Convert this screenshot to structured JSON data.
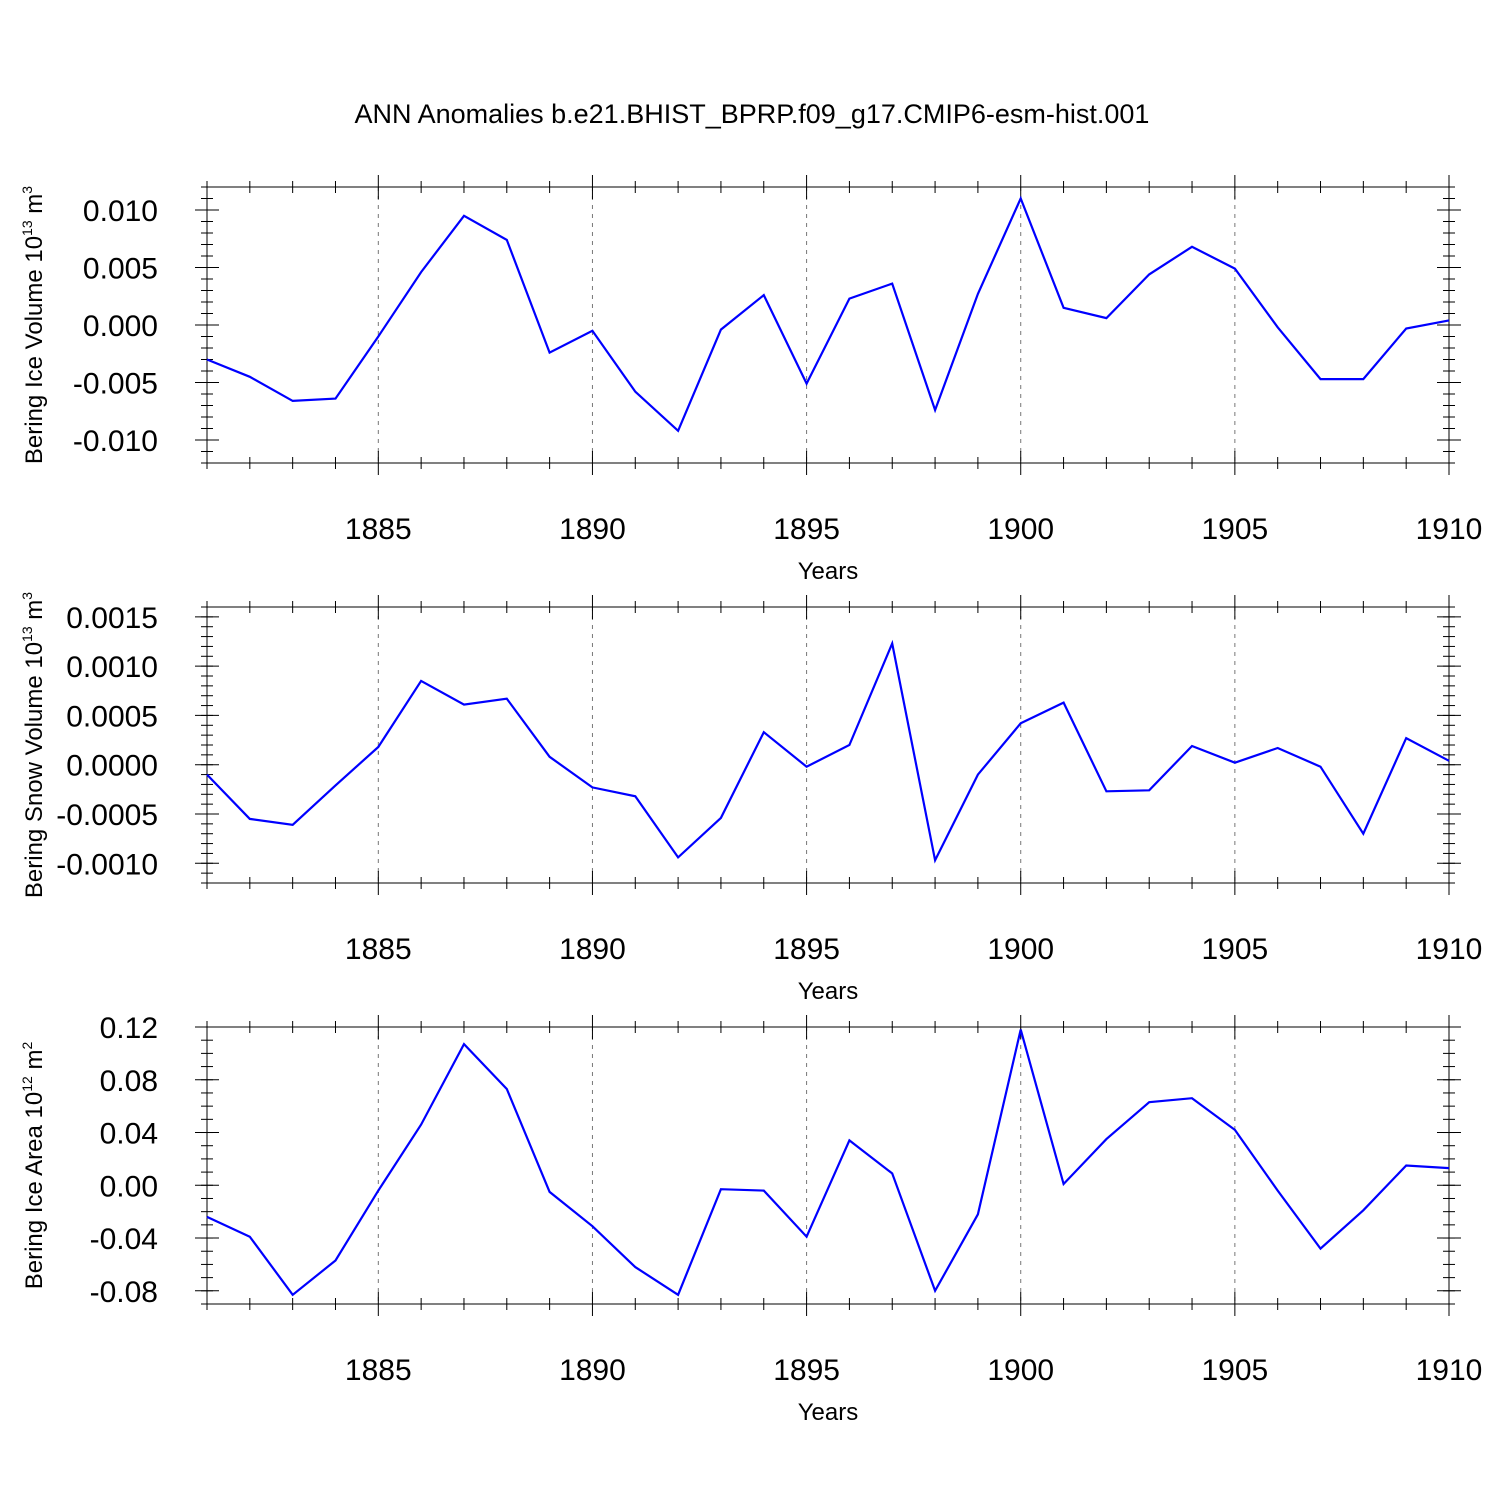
{
  "title": "ANN Anomalies b.e21.BHIST_BPRP.f09_g17.CMIP6-esm-hist.001",
  "line_color": "#0000ff",
  "grid_color": "#777777",
  "chart_data": [
    {
      "type": "line",
      "xlabel": "Years",
      "ylabel": {
        "text": "Bering Ice Volume 10",
        "exp": "13",
        "unit": " m",
        "unit_exp": "3"
      },
      "xlim": [
        1881,
        1910
      ],
      "ylim": [
        -0.012,
        0.012
      ],
      "x_ticks": [
        1885,
        1890,
        1895,
        1900,
        1905,
        1910
      ],
      "y_ticks": [
        -0.01,
        -0.005,
        0.0,
        0.005,
        0.01
      ],
      "y_tick_labels": [
        "-0.010",
        "-0.005",
        "0.000",
        "0.005",
        "0.010"
      ],
      "y_minor_step": 0.001,
      "grid": "vertical dashed at major x ticks",
      "x": [
        1881,
        1882,
        1883,
        1884,
        1885,
        1886,
        1887,
        1888,
        1889,
        1890,
        1891,
        1892,
        1893,
        1894,
        1895,
        1896,
        1897,
        1898,
        1899,
        1900,
        1901,
        1902,
        1903,
        1904,
        1905,
        1906,
        1907,
        1908,
        1909,
        1910
      ],
      "series": [
        {
          "values": [
            -0.003,
            -0.0045,
            -0.0066,
            -0.0064,
            -0.001,
            0.0046,
            0.0095,
            0.0074,
            -0.0024,
            -0.0005,
            -0.0058,
            -0.0092,
            -0.0004,
            0.0026,
            -0.0051,
            0.0023,
            0.0036,
            -0.0074,
            0.0027,
            0.011,
            0.0015,
            0.0006,
            0.0044,
            0.0068,
            0.0049,
            -0.0002,
            -0.0047,
            -0.0047,
            -0.0003,
            0.0004
          ]
        }
      ]
    },
    {
      "type": "line",
      "xlabel": "Years",
      "ylabel": {
        "text": "Bering Snow Volume 10",
        "exp": "13",
        "unit": " m",
        "unit_exp": "3"
      },
      "xlim": [
        1881,
        1910
      ],
      "ylim": [
        -0.0012,
        0.0016
      ],
      "x_ticks": [
        1885,
        1890,
        1895,
        1900,
        1905,
        1910
      ],
      "y_ticks": [
        -0.001,
        -0.0005,
        0.0,
        0.0005,
        0.001,
        0.0015
      ],
      "y_tick_labels": [
        "-0.0010",
        "-0.0005",
        "0.0000",
        "0.0005",
        "0.0010",
        "0.0015"
      ],
      "y_minor_step": 0.0001,
      "grid": "vertical dashed at major x ticks",
      "x": [
        1881,
        1882,
        1883,
        1884,
        1885,
        1886,
        1887,
        1888,
        1889,
        1890,
        1891,
        1892,
        1893,
        1894,
        1895,
        1896,
        1897,
        1898,
        1899,
        1900,
        1901,
        1902,
        1903,
        1904,
        1905,
        1906,
        1907,
        1908,
        1909,
        1910
      ],
      "series": [
        {
          "values": [
            -0.0001,
            -0.00055,
            -0.00061,
            -0.00021,
            0.00018,
            0.00085,
            0.00061,
            0.00067,
            8e-05,
            -0.00023,
            -0.00032,
            -0.00094,
            -0.00054,
            0.00033,
            -2e-05,
            0.0002,
            0.00123,
            -0.00097,
            -0.0001,
            0.00042,
            0.00063,
            -0.00027,
            -0.00026,
            0.00019,
            2e-05,
            0.00017,
            -2e-05,
            -0.0007,
            0.00027,
            4e-05
          ]
        }
      ]
    },
    {
      "type": "line",
      "xlabel": "Years",
      "ylabel": {
        "text": "Bering Ice Area 10",
        "exp": "12",
        "unit": " m",
        "unit_exp": "2"
      },
      "xlim": [
        1881,
        1910
      ],
      "ylim": [
        -0.09,
        0.12
      ],
      "x_ticks": [
        1885,
        1890,
        1895,
        1900,
        1905,
        1910
      ],
      "y_ticks": [
        -0.08,
        -0.04,
        0.0,
        0.04,
        0.08,
        0.12
      ],
      "y_tick_labels": [
        "-0.08",
        "-0.04",
        "0.00",
        "0.04",
        "0.08",
        "0.12"
      ],
      "y_minor_step": 0.01,
      "grid": "vertical dashed at major x ticks",
      "x": [
        1881,
        1882,
        1883,
        1884,
        1885,
        1886,
        1887,
        1888,
        1889,
        1890,
        1891,
        1892,
        1893,
        1894,
        1895,
        1896,
        1897,
        1898,
        1899,
        1900,
        1901,
        1902,
        1903,
        1904,
        1905,
        1906,
        1907,
        1908,
        1909,
        1910
      ],
      "series": [
        {
          "values": [
            -0.024,
            -0.039,
            -0.083,
            -0.057,
            -0.004,
            0.046,
            0.107,
            0.073,
            -0.005,
            -0.031,
            -0.062,
            -0.083,
            -0.003,
            -0.004,
            -0.039,
            0.034,
            0.009,
            -0.08,
            -0.022,
            0.118,
            0.001,
            0.035,
            0.063,
            0.066,
            0.042,
            -0.004,
            -0.048,
            -0.019,
            0.015,
            0.013
          ]
        }
      ]
    }
  ]
}
